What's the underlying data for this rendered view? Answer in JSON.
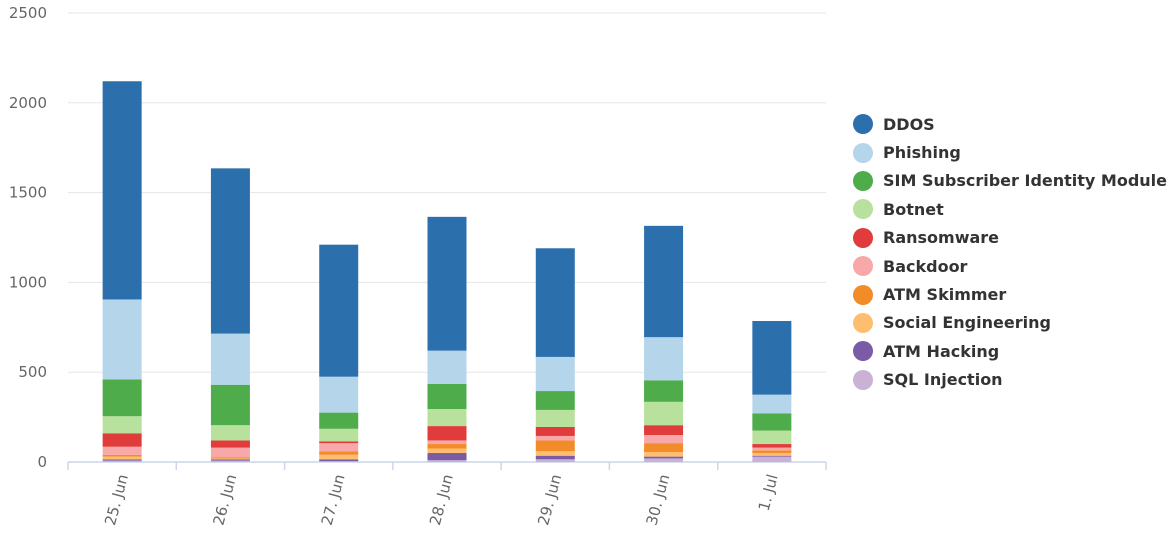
{
  "chart_data": {
    "type": "bar",
    "stacked": true,
    "categories": [
      "25. Jun",
      "26. Jun",
      "27. Jun",
      "28. Jun",
      "29. Jun",
      "30. Jun",
      "1. Jul"
    ],
    "ylim": [
      0,
      2500
    ],
    "yticks": [
      0,
      500,
      1000,
      1500,
      2000,
      2500
    ],
    "grid": true,
    "legend_position": "right",
    "series": [
      {
        "name": "SQL Injection",
        "color": "#cab2d6",
        "values": [
          8,
          8,
          5,
          10,
          15,
          20,
          30
        ]
      },
      {
        "name": "ATM Hacking",
        "color": "#7b5aa6",
        "values": [
          7,
          7,
          10,
          40,
          20,
          10,
          5
        ]
      },
      {
        "name": "Social Engineering",
        "color": "#fdbf6f",
        "values": [
          15,
          5,
          25,
          25,
          25,
          25,
          15
        ]
      },
      {
        "name": "ATM Skimmer",
        "color": "#f28c28",
        "values": [
          10,
          5,
          20,
          25,
          60,
          50,
          15
        ]
      },
      {
        "name": "Backdoor",
        "color": "#f8a8a8",
        "values": [
          45,
          55,
          45,
          20,
          25,
          45,
          15
        ]
      },
      {
        "name": "Ransomware",
        "color": "#e03c3c",
        "values": [
          75,
          40,
          10,
          80,
          50,
          55,
          20
        ]
      },
      {
        "name": "Botnet",
        "color": "#b8e19e",
        "values": [
          95,
          85,
          70,
          95,
          95,
          130,
          75
        ]
      },
      {
        "name": "SIM Subscriber Identity Module",
        "color": "#4eac4a",
        "values": [
          205,
          225,
          90,
          140,
          105,
          120,
          95
        ]
      },
      {
        "name": "Phishing",
        "color": "#b5d5ea",
        "values": [
          445,
          285,
          200,
          185,
          190,
          240,
          105
        ]
      },
      {
        "name": "DDOS",
        "color": "#2c6fad",
        "values": [
          1215,
          920,
          735,
          745,
          605,
          620,
          410
        ]
      }
    ],
    "legend_order": [
      "DDOS",
      "Phishing",
      "SIM Subscriber Identity Module",
      "Botnet",
      "Ransomware",
      "Backdoor",
      "ATM Skimmer",
      "Social Engineering",
      "ATM Hacking",
      "SQL Injection"
    ]
  }
}
